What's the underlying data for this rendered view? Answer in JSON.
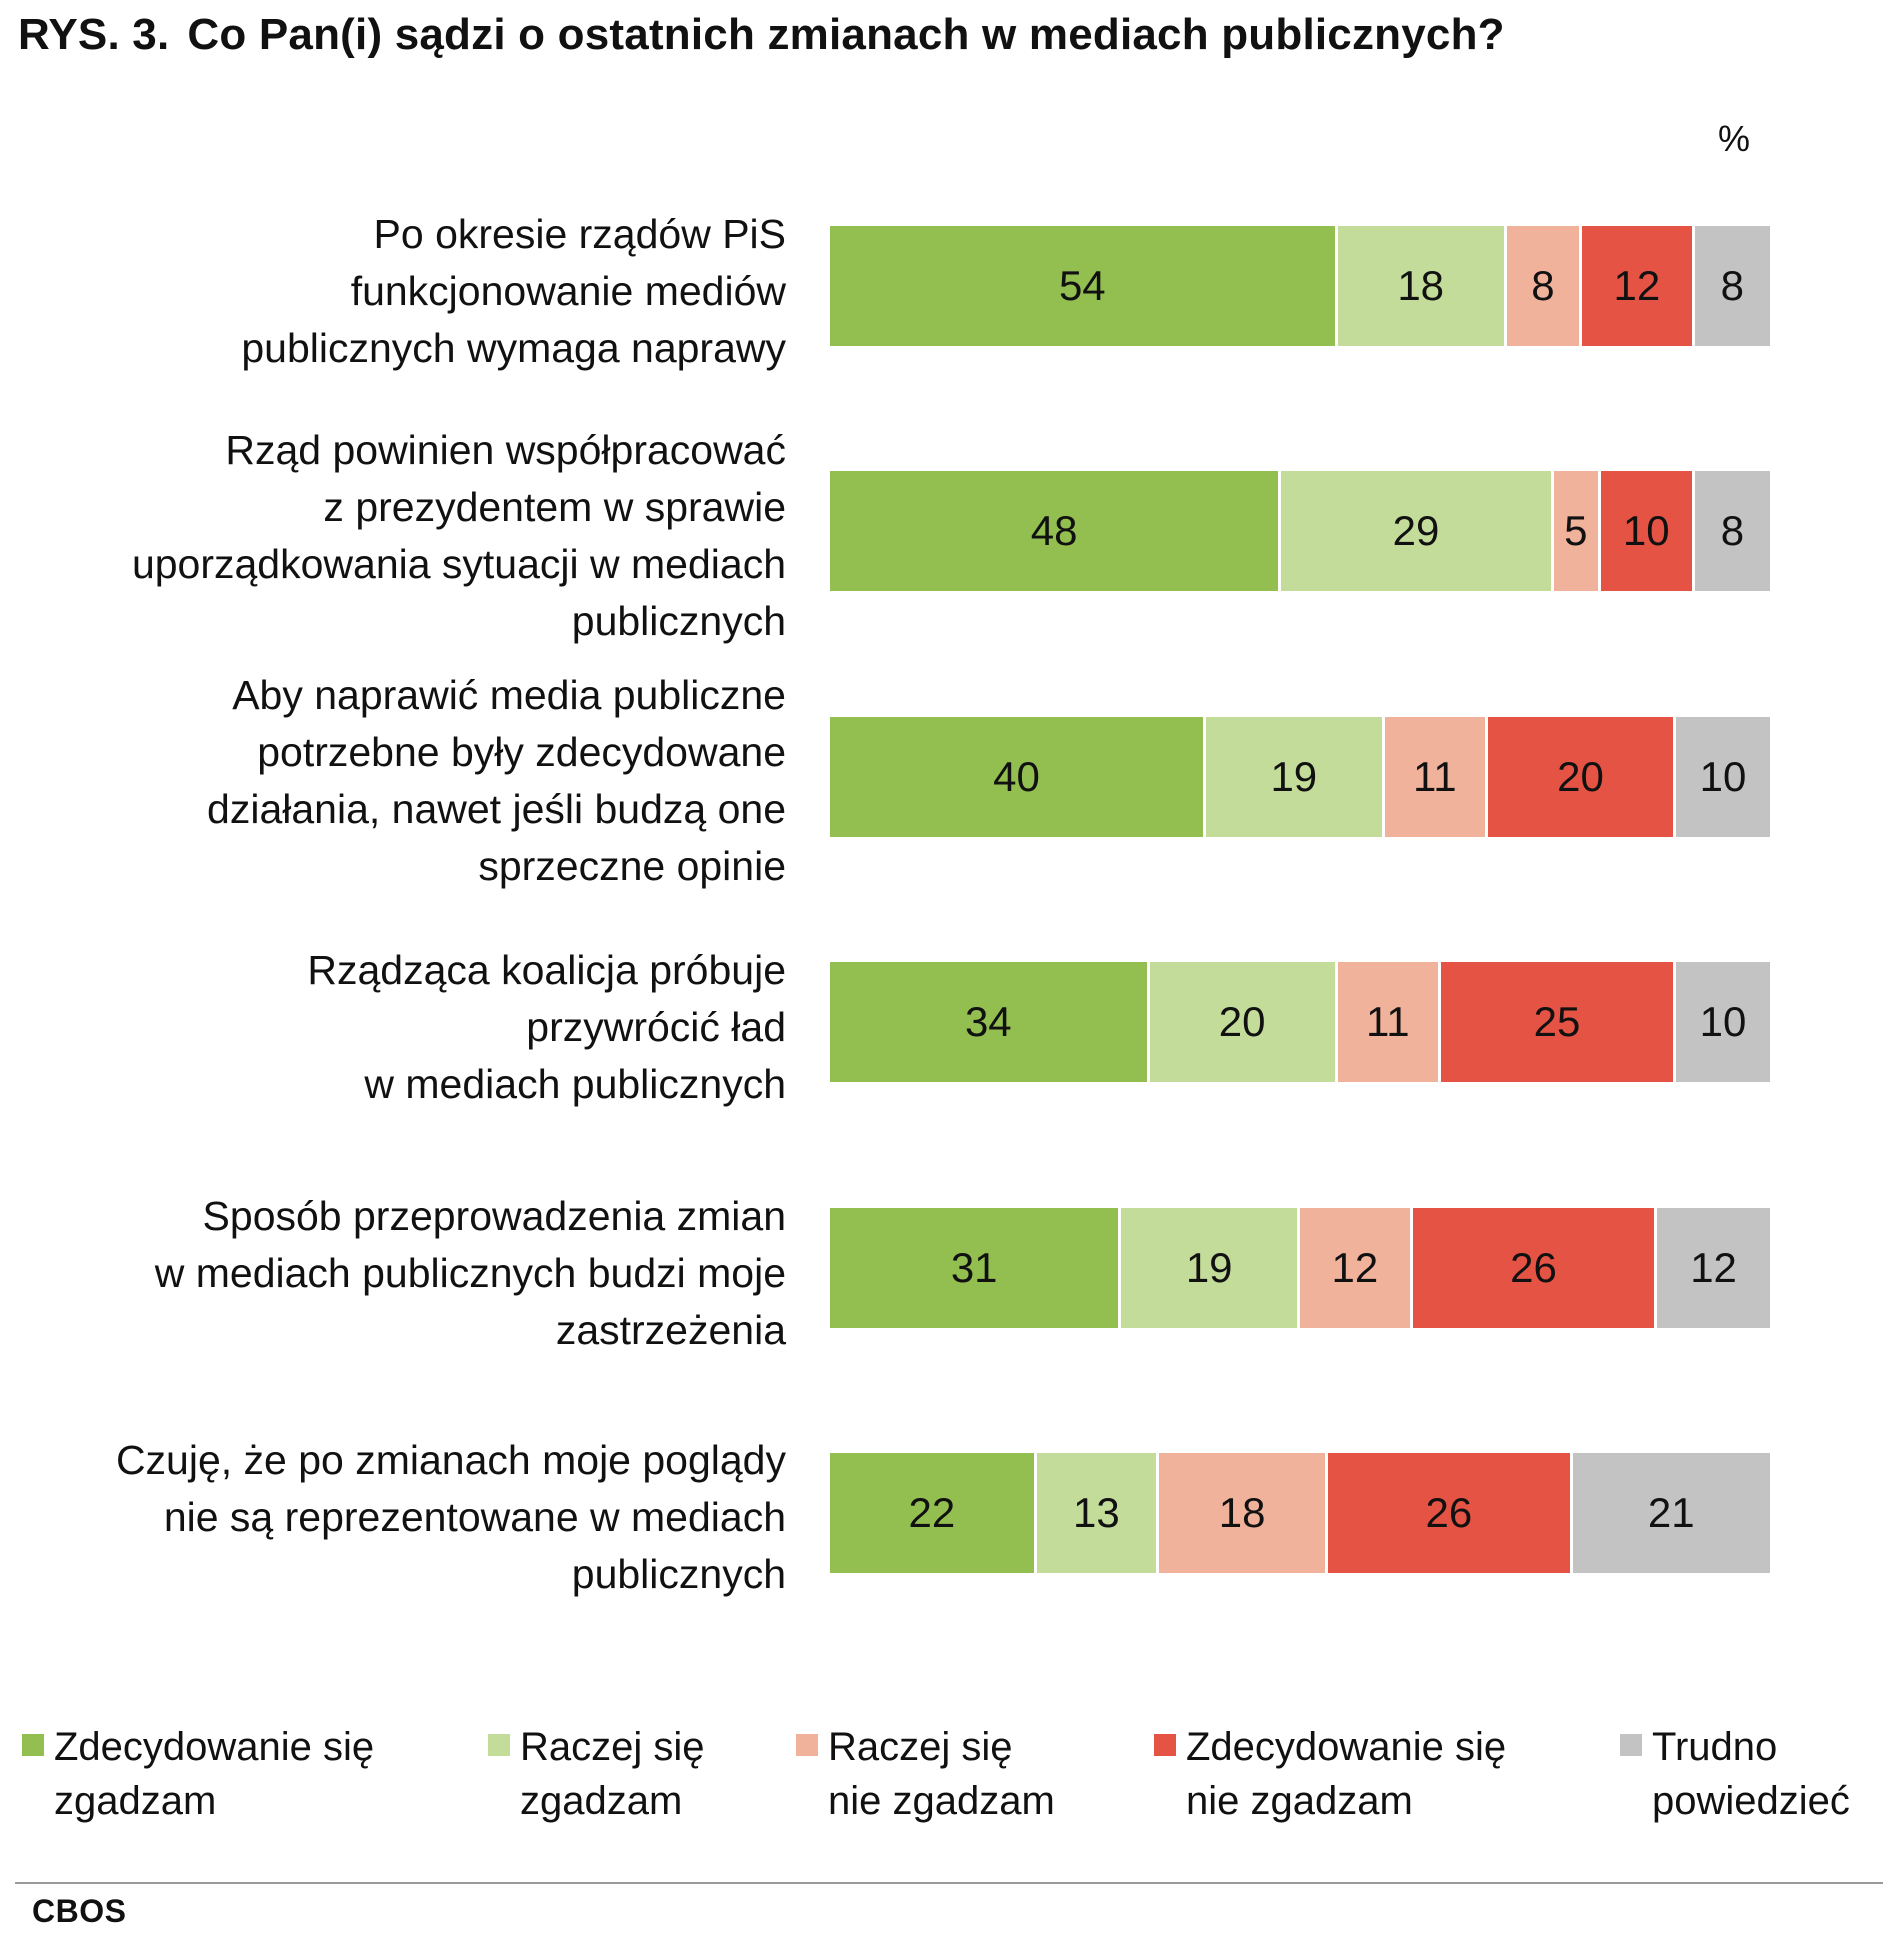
{
  "figure_number": "RYS. 3.",
  "title": "Co Pan(i) sądzi o ostatnich zmianach w mediach publicznych?",
  "unit": "%",
  "source": "CBOS",
  "chart_data": {
    "type": "bar",
    "orientation": "horizontal",
    "stacked": true,
    "title": "Co Pan(i) sądzi o ostatnich zmianach w mediach publicznych?",
    "unit": "%",
    "legend_position": "bottom",
    "grid": false,
    "xlim": [
      0,
      100
    ],
    "categories": [
      [
        "Po okresie rządów PiS",
        "funkcjonowanie mediów",
        "publicznych wymaga naprawy"
      ],
      [
        "Rząd powinien współpracować",
        "z prezydentem w sprawie",
        "uporządkowania sytuacji w mediach",
        "publicznych"
      ],
      [
        "Aby naprawić media publiczne",
        "potrzebne były zdecydowane",
        "działania, nawet jeśli budzą one",
        "sprzeczne opinie"
      ],
      [
        "Rządząca koalicja próbuje",
        "przywrócić ład",
        "w mediach publicznych"
      ],
      [
        "Sposób przeprowadzenia zmian",
        "w mediach publicznych budzi moje",
        "zastrzeżenia"
      ],
      [
        "Czuję, że po zmianach moje poglądy",
        "nie są reprezentowane w mediach",
        "publicznych"
      ]
    ],
    "series": [
      {
        "name": [
          "Zdecydowanie się",
          "zgadzam"
        ],
        "color": "#92bf4f",
        "values": [
          54,
          48,
          40,
          34,
          31,
          22
        ]
      },
      {
        "name": [
          "Raczej się",
          "zgadzam"
        ],
        "color": "#c4dc9a",
        "values": [
          18,
          29,
          19,
          20,
          19,
          13
        ]
      },
      {
        "name": [
          "Raczej się",
          "nie zgadzam"
        ],
        "color": "#f1b29c",
        "values": [
          8,
          5,
          11,
          11,
          12,
          18
        ]
      },
      {
        "name": [
          "Zdecydowanie się",
          "nie zgadzam"
        ],
        "color": "#e45344",
        "values": [
          12,
          10,
          20,
          25,
          26,
          26
        ]
      },
      {
        "name": [
          "Trudno",
          "powiedzieć"
        ],
        "color": "#c3c3c3",
        "values": [
          8,
          8,
          10,
          10,
          12,
          21
        ]
      }
    ]
  }
}
